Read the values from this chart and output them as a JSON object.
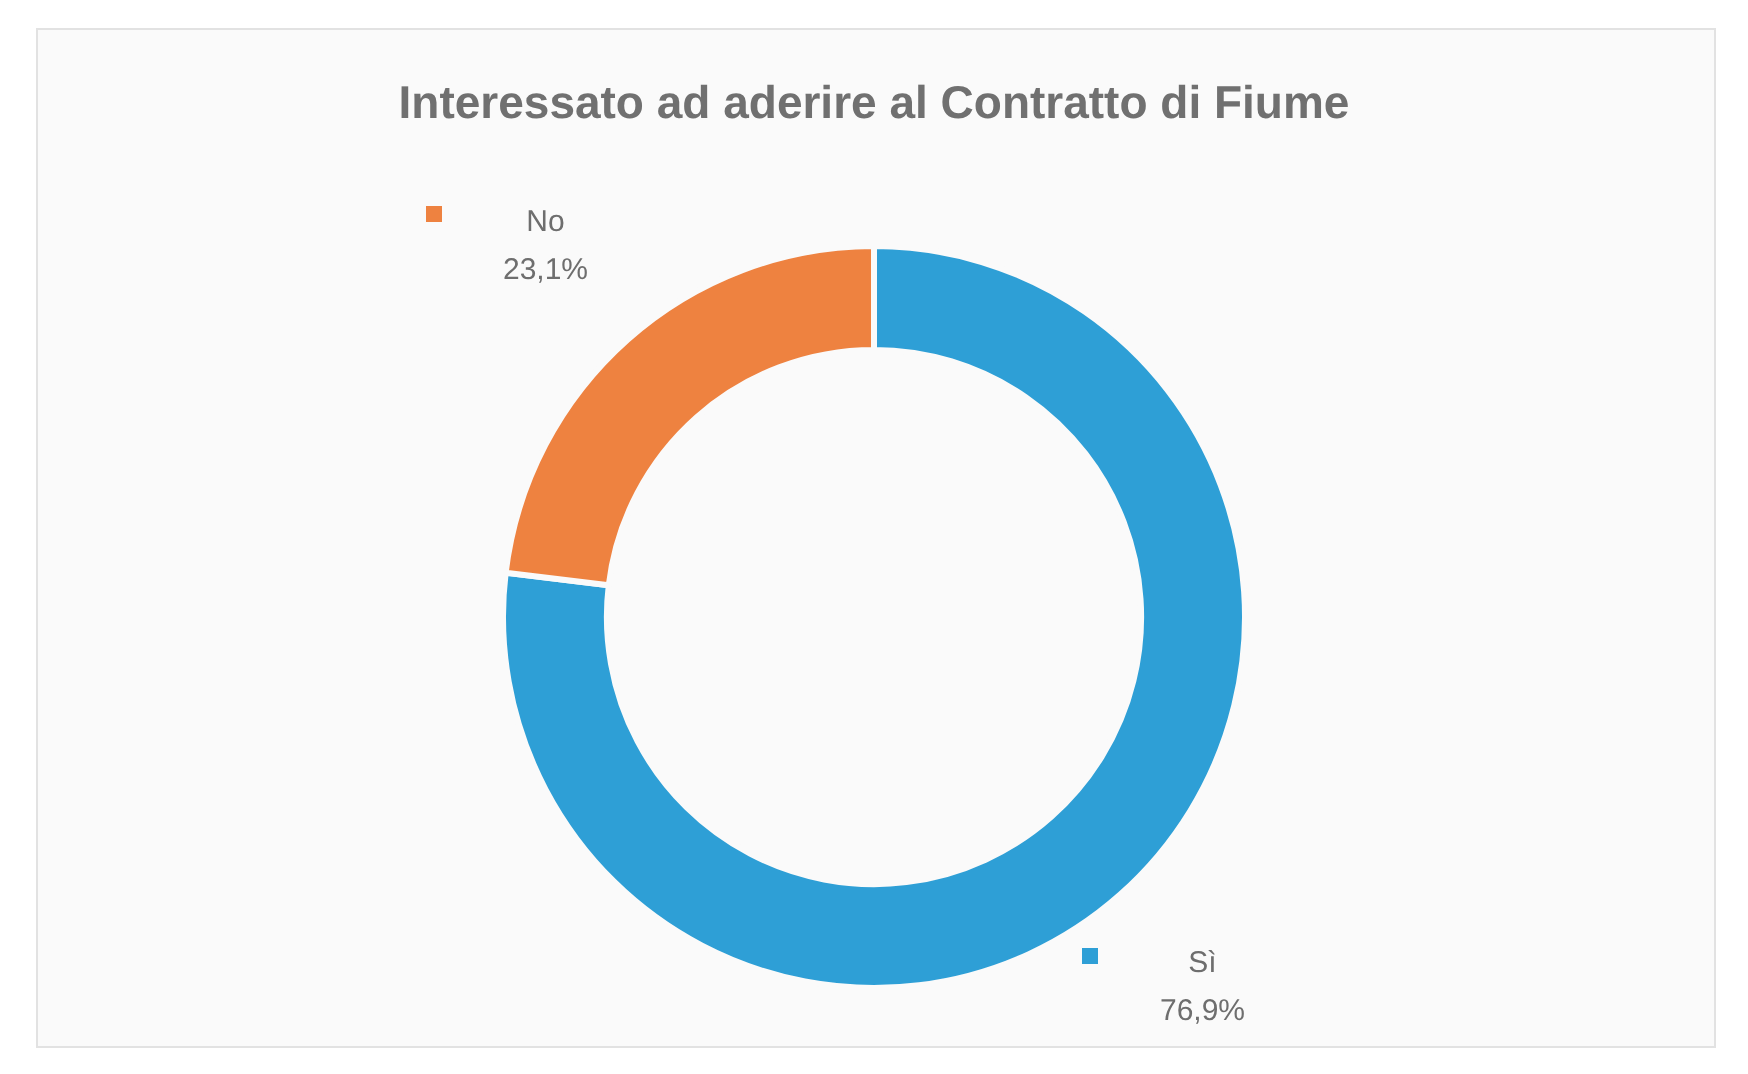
{
  "chart_data": {
    "type": "donut",
    "title": "Interessato ad aderire al Contratto di Fiume",
    "categories": [
      "Sì",
      "No"
    ],
    "values": [
      76.9,
      23.1
    ],
    "colors": [
      "#2e9fd6",
      "#ee8240"
    ],
    "value_labels": [
      "76,9%",
      "23,1%"
    ],
    "legend": false
  }
}
